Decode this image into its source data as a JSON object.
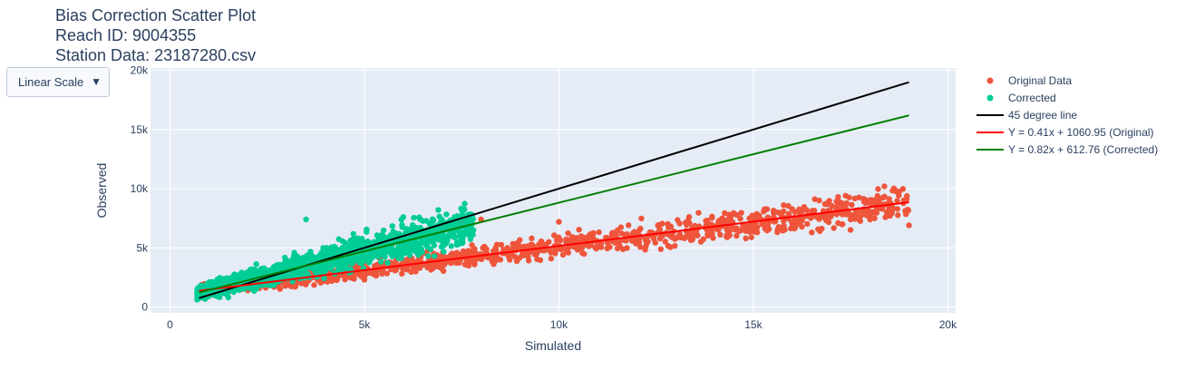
{
  "title_lines": [
    "Bias Correction Scatter Plot",
    "Reach ID: 9004355",
    "Station Data: 23187280.csv"
  ],
  "scale_dropdown": {
    "selected": "Linear Scale",
    "caret": "▼"
  },
  "colors": {
    "original": "#EF553B",
    "corrected": "#00CC96",
    "line45": "#000000",
    "fit_original": "#ff0000",
    "fit_corrected": "#008000",
    "plot_bg": "#E5ECF6",
    "grid": "#ffffff"
  },
  "chart_data": {
    "type": "scatter",
    "xlabel": "Simulated",
    "ylabel": "Observed",
    "xlim": [
      -500,
      20200
    ],
    "ylim": [
      -500,
      20200
    ],
    "x_ticks": [
      0,
      5000,
      10000,
      15000,
      20000
    ],
    "x_tick_labels": [
      "0",
      "5k",
      "10k",
      "15k",
      "20k"
    ],
    "y_ticks": [
      0,
      5000,
      10000,
      15000,
      20000
    ],
    "y_tick_labels": [
      "0",
      "5k",
      "10k",
      "15k",
      "20k"
    ],
    "grid": true,
    "legend_position": "right",
    "series": [
      {
        "name": "Original Data",
        "kind": "markers",
        "color": "#EF553B",
        "cloud": {
          "x_range": [
            800,
            19000
          ],
          "fit": [
            0.41,
            1060.95
          ]
        },
        "sample_points": [
          [
            800,
            1300
          ],
          [
            2000,
            1400
          ],
          [
            5000,
            2300
          ],
          [
            7500,
            7200
          ],
          [
            8000,
            7400
          ],
          [
            10000,
            7200
          ],
          [
            12000,
            5500
          ],
          [
            14200,
            7500
          ],
          [
            15500,
            7500
          ],
          [
            16500,
            6300
          ],
          [
            17500,
            7400
          ],
          [
            18000,
            7400
          ],
          [
            19000,
            6900
          ]
        ]
      },
      {
        "name": "Corrected",
        "kind": "markers",
        "color": "#00CC96",
        "cloud": {
          "x_range": [
            700,
            7800
          ],
          "fit": [
            0.82,
            612.76
          ]
        },
        "sample_points": [
          [
            700,
            1200
          ],
          [
            1500,
            800
          ],
          [
            3500,
            7400
          ],
          [
            6000,
            7600
          ],
          [
            6900,
            8200
          ],
          [
            7800,
            6500
          ]
        ]
      },
      {
        "name": "45 degree line",
        "kind": "line",
        "color": "#000000",
        "x": [
          750,
          19000
        ],
        "y": [
          750,
          19000
        ]
      },
      {
        "name": "Y = 0.41x + 1060.95 (Original)",
        "kind": "line",
        "color": "#ff0000",
        "x": [
          750,
          19000
        ],
        "y": [
          1368.45,
          8850.95
        ]
      },
      {
        "name": "Y = 0.82x + 612.76 (Corrected)",
        "kind": "line",
        "color": "#008000",
        "x": [
          750,
          19000
        ],
        "y": [
          1227.76,
          16192.76
        ]
      }
    ]
  }
}
